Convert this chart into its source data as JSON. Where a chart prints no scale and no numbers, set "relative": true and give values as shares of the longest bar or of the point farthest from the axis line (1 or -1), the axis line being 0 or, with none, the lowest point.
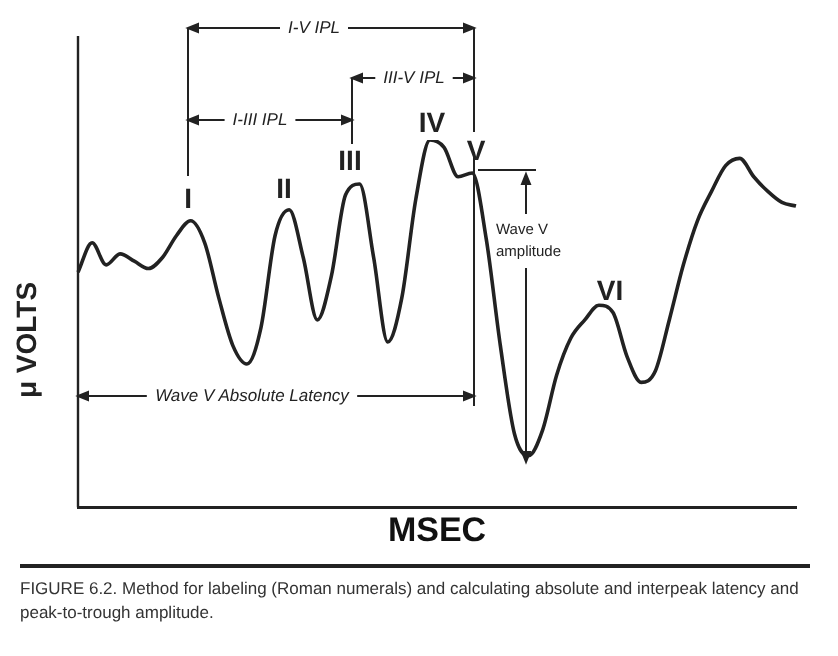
{
  "chart_data": {
    "type": "line",
    "relative": true,
    "xlabel": "MSEC",
    "ylabel": "μ VOLTS",
    "color": "#222222",
    "grid": false,
    "legend": false,
    "marker": "none",
    "line_style": "solid",
    "categories": [
      null,
      null,
      null,
      null,
      null,
      null,
      null,
      null,
      null,
      null,
      null,
      null,
      null,
      null,
      null,
      null,
      null,
      null,
      null,
      null,
      null,
      null,
      null,
      null,
      null,
      null,
      null,
      null,
      null,
      null,
      null,
      null,
      null,
      null,
      null,
      null,
      null,
      null,
      null,
      null,
      null,
      null,
      null,
      null,
      null,
      null,
      null,
      null,
      null,
      null,
      null,
      null
    ],
    "values": [
      0.64,
      0.72,
      0.66,
      0.69,
      0.67,
      0.65,
      0.68,
      0.74,
      0.78,
      0.72,
      0.57,
      0.44,
      0.39,
      0.49,
      0.74,
      0.81,
      0.68,
      0.51,
      0.63,
      0.85,
      0.88,
      0.68,
      0.45,
      0.57,
      0.84,
      1.0,
      0.98,
      0.9,
      0.91,
      0.73,
      0.44,
      0.2,
      0.14,
      0.21,
      0.36,
      0.46,
      0.51,
      0.55,
      0.53,
      0.41,
      0.34,
      0.37,
      0.51,
      0.66,
      0.78,
      0.86,
      0.93,
      0.95,
      0.9,
      0.86,
      0.83,
      0.82
    ],
    "annotations": [
      "I",
      "II",
      "III",
      "IV",
      "V",
      "VI",
      "I-V IPL",
      "III-V IPL",
      "I-III IPL",
      "Wave V amplitude",
      "Wave V Absolute Latency",
      "FIGURE 6.2. Method for labeling (Roman numerals) and calculating absolute and interpeak latency and peak-to-trough amplitude."
    ]
  }
}
